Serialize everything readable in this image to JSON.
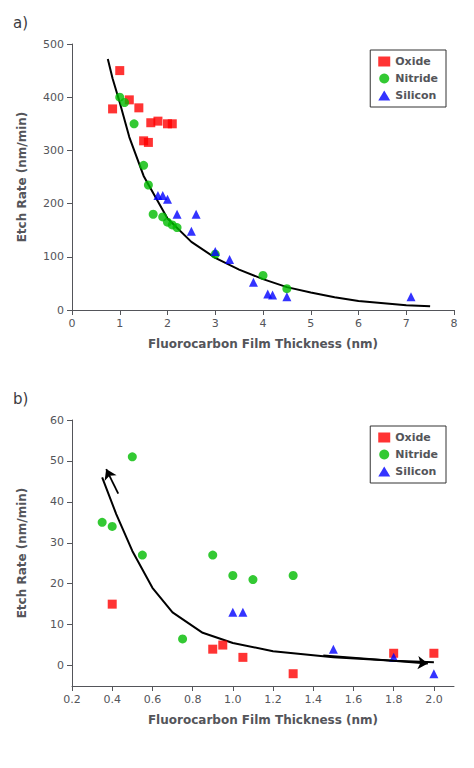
{
  "chart_data": [
    {
      "type": "scatter",
      "title": "a)",
      "xlabel": "Fluorocarbon Film Thickness (nm)",
      "ylabel": "Etch Rate (nm/min)",
      "xlim": [
        0,
        8
      ],
      "ylim": [
        0,
        500
      ],
      "xticks": [
        0,
        1,
        2,
        3,
        4,
        5,
        6,
        7,
        8
      ],
      "yticks": [
        0,
        100,
        200,
        300,
        400,
        500
      ],
      "grid": false,
      "legend": "upper right",
      "series": [
        {
          "type": "line",
          "color": "#000000",
          "line_style": "solid",
          "x": [
            0.75,
            0.85,
            1.0,
            1.2,
            1.5,
            2.0,
            2.5,
            3.0,
            3.5,
            4.0,
            4.5,
            5.0,
            5.5,
            6.0,
            7.0,
            7.5
          ],
          "values": [
            472,
            435,
            390,
            325,
            252,
            172,
            128,
            98,
            76,
            58,
            43,
            33,
            24,
            17,
            9,
            7
          ]
        },
        {
          "name": "Oxide",
          "type": "scatter",
          "marker": "square",
          "color": "#FF0000",
          "x": [
            0.85,
            1.0,
            1.2,
            1.4,
            1.5,
            1.6,
            1.65,
            1.8,
            2.0,
            2.1
          ],
          "values": [
            378,
            450,
            395,
            380,
            318,
            315,
            352,
            355,
            350,
            350
          ]
        },
        {
          "name": "Nitride",
          "type": "scatter",
          "marker": "circle",
          "color": "#00BB00",
          "x": [
            1.0,
            1.1,
            1.3,
            1.5,
            1.6,
            1.7,
            1.9,
            2.0,
            2.1,
            2.2,
            3.0,
            4.0,
            4.5
          ],
          "values": [
            400,
            390,
            350,
            272,
            235,
            180,
            175,
            165,
            160,
            155,
            105,
            65,
            40
          ]
        },
        {
          "name": "Silicon",
          "type": "scatter",
          "marker": "triangle",
          "color": "#0000FF",
          "x": [
            1.8,
            1.9,
            2.0,
            2.2,
            2.5,
            2.6,
            3.0,
            3.3,
            3.8,
            4.1,
            4.2,
            4.5,
            7.1
          ],
          "values": [
            215,
            215,
            208,
            180,
            148,
            180,
            110,
            95,
            52,
            30,
            28,
            25,
            25
          ]
        }
      ]
    },
    {
      "type": "scatter",
      "title": "b)",
      "xlabel": "Fluorocarbon Film Thickness (nm)",
      "ylabel": "Etch Rate (nm/min)",
      "xlim": [
        0.2,
        2.1
      ],
      "ylim": [
        -5,
        60
      ],
      "xticks": [
        0.2,
        0.4,
        0.6,
        0.8,
        {
          "value": 1.0,
          "label": "1.0"
        },
        1.2,
        1.4,
        1.6,
        1.8,
        {
          "value": 2.0,
          "label": "2.0"
        }
      ],
      "yticks": [
        0,
        10,
        20,
        30,
        40,
        50,
        60
      ],
      "grid": false,
      "legend": "upper right",
      "series": [
        {
          "type": "line",
          "color": "#000000",
          "line_style": "solid",
          "x": [
            0.35,
            0.42,
            0.5,
            0.6,
            0.7,
            0.85,
            1.0,
            1.2,
            1.5,
            1.8,
            2.0
          ],
          "values": [
            46,
            37,
            28,
            19,
            13,
            8,
            5.5,
            3.5,
            2.0,
            1.2,
            0.8
          ]
        },
        {
          "name": "Oxide",
          "type": "scatter",
          "marker": "square",
          "color": "#FF0000",
          "x": [
            0.4,
            0.9,
            0.95,
            1.05,
            1.3,
            1.8,
            2.0
          ],
          "values": [
            15,
            4,
            5,
            2,
            -2,
            3,
            3
          ]
        },
        {
          "name": "Nitride",
          "type": "scatter",
          "marker": "circle",
          "color": "#00BB00",
          "x": [
            0.35,
            0.4,
            0.5,
            0.55,
            0.75,
            0.9,
            1.0,
            1.1,
            1.3
          ],
          "values": [
            35,
            34,
            51,
            27,
            6.5,
            27,
            22,
            21,
            22
          ]
        },
        {
          "name": "Silicon",
          "type": "scatter",
          "marker": "triangle",
          "color": "#0000FF",
          "x": [
            1.0,
            1.05,
            1.5,
            1.8,
            2.0
          ],
          "values": [
            13,
            13,
            4,
            2,
            -2
          ]
        }
      ],
      "arrows": [
        {
          "x": [
            0.43,
            0.37
          ],
          "y": [
            42,
            48
          ]
        },
        {
          "x": [
            1.45,
            1.97
          ],
          "y": [
            2.5,
            0.5
          ]
        }
      ]
    }
  ]
}
